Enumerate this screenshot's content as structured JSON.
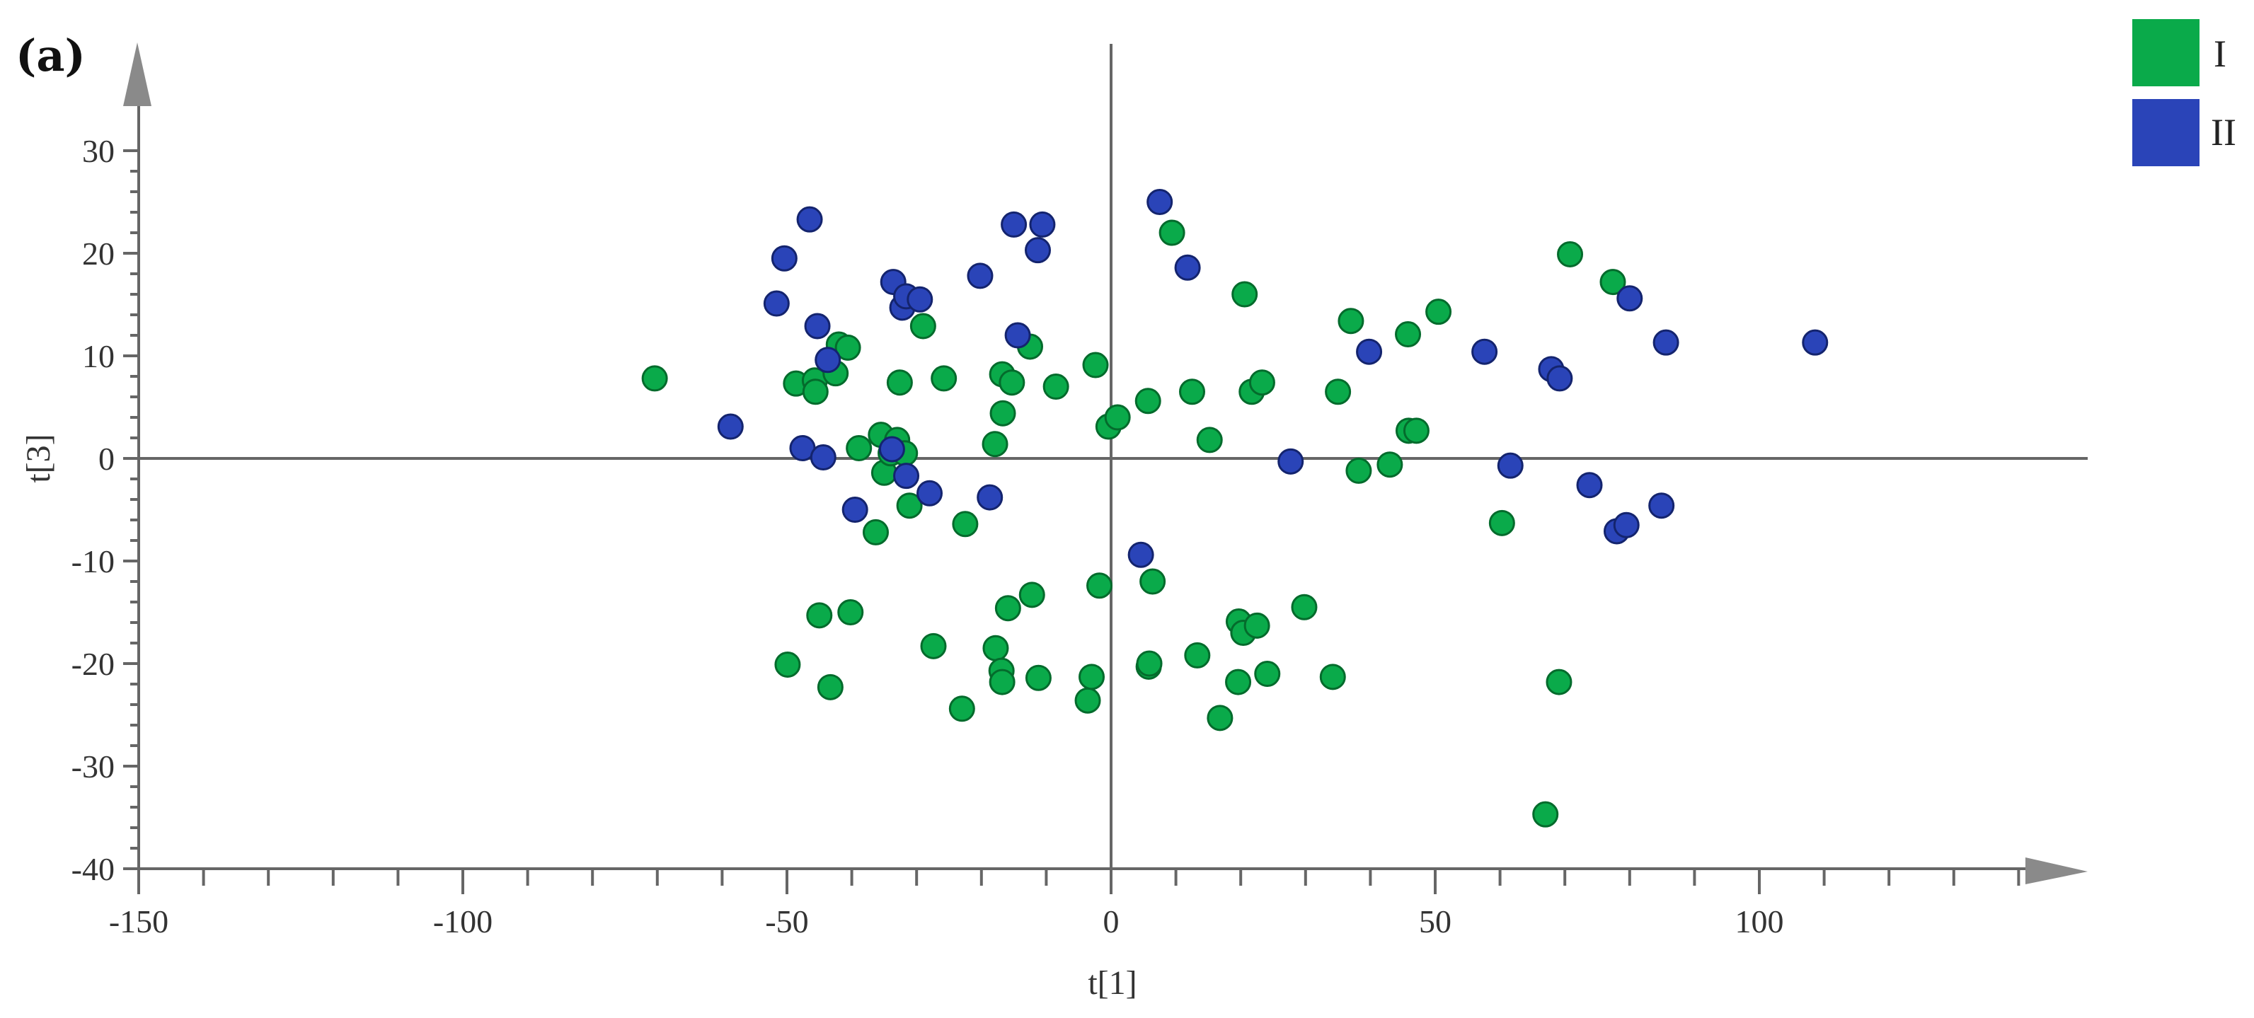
{
  "panel_label": "(a)",
  "colors": {
    "I": "#0aaa4a",
    "II": "#2a44b8",
    "axis": "#666666"
  },
  "chart_data": {
    "type": "scatter",
    "xlabel": "t[1]",
    "ylabel": "t[3]",
    "xlim": [
      -150,
      150
    ],
    "ylim": [
      -40,
      35
    ],
    "xticks": [
      -150,
      -100,
      -50,
      0,
      50,
      100
    ],
    "yticks": [
      -40,
      -30,
      -20,
      -10,
      0,
      10,
      20,
      30
    ],
    "legend_position": "top-right",
    "grid": false,
    "series": [
      {
        "name": "I",
        "color": "#0aaa4a",
        "points": [
          [
            -70.4,
            7.8
          ],
          [
            -48.6,
            7.3
          ],
          [
            -45.7,
            7.6
          ],
          [
            -45.6,
            6.5
          ],
          [
            -42.5,
            8.3
          ],
          [
            -42.0,
            11.1
          ],
          [
            -40.6,
            10.8
          ],
          [
            -38.9,
            1.0
          ],
          [
            -35.5,
            2.3
          ],
          [
            -35.0,
            -1.4
          ],
          [
            -34.0,
            0.5
          ],
          [
            -33.0,
            1.8
          ],
          [
            -32.6,
            7.4
          ],
          [
            -31.8,
            0.5
          ],
          [
            -31.1,
            -4.6
          ],
          [
            -29.0,
            12.9
          ],
          [
            -25.8,
            7.8
          ],
          [
            -36.3,
            -7.2
          ],
          [
            -22.5,
            -6.4
          ],
          [
            -16.8,
            8.2
          ],
          [
            -16.7,
            4.4
          ],
          [
            -17.9,
            1.4
          ],
          [
            -15.3,
            7.4
          ],
          [
            -12.5,
            10.9
          ],
          [
            -8.5,
            7.0
          ],
          [
            -2.4,
            9.1
          ],
          [
            -0.4,
            3.1
          ],
          [
            1.0,
            4.0
          ],
          [
            5.7,
            5.6
          ],
          [
            12.5,
            6.5
          ],
          [
            15.2,
            1.8
          ],
          [
            20.6,
            16.0
          ],
          [
            21.7,
            6.5
          ],
          [
            23.3,
            7.4
          ],
          [
            9.4,
            22.0
          ],
          [
            35.0,
            6.5
          ],
          [
            37.0,
            13.4
          ],
          [
            38.2,
            -1.2
          ],
          [
            43.0,
            -0.6
          ],
          [
            45.8,
            12.1
          ],
          [
            45.9,
            2.7
          ],
          [
            47.1,
            2.7
          ],
          [
            50.5,
            14.3
          ],
          [
            60.3,
            -6.3
          ],
          [
            70.8,
            19.9
          ],
          [
            77.4,
            17.2
          ],
          [
            -49.9,
            -20.1
          ],
          [
            -45.0,
            -15.3
          ],
          [
            -43.3,
            -22.3
          ],
          [
            -40.2,
            -15.0
          ],
          [
            -27.4,
            -18.3
          ],
          [
            -23.0,
            -24.4
          ],
          [
            -17.8,
            -18.5
          ],
          [
            -16.9,
            -20.7
          ],
          [
            -16.8,
            -21.8
          ],
          [
            -15.9,
            -14.6
          ],
          [
            -12.2,
            -13.3
          ],
          [
            -11.2,
            -21.4
          ],
          [
            -3.6,
            -23.6
          ],
          [
            -3.0,
            -21.3
          ],
          [
            -1.8,
            -12.4
          ],
          [
            5.8,
            -20.3
          ],
          [
            5.9,
            -20.0
          ],
          [
            6.4,
            -12.0
          ],
          [
            13.3,
            -19.2
          ],
          [
            16.8,
            -25.3
          ],
          [
            19.7,
            -15.9
          ],
          [
            19.6,
            -21.8
          ],
          [
            20.4,
            -17.0
          ],
          [
            22.5,
            -16.3
          ],
          [
            24.1,
            -21.0
          ],
          [
            29.8,
            -14.5
          ],
          [
            34.2,
            -21.3
          ],
          [
            67.0,
            -34.7
          ],
          [
            69.1,
            -21.8
          ]
        ]
      },
      {
        "name": "II",
        "color": "#2a44b8",
        "points": [
          [
            -46.5,
            23.3
          ],
          [
            -50.4,
            19.5
          ],
          [
            -51.6,
            15.1
          ],
          [
            -45.3,
            12.9
          ],
          [
            -43.7,
            9.6
          ],
          [
            -58.7,
            3.1
          ],
          [
            -47.6,
            1.0
          ],
          [
            -44.4,
            0.1
          ],
          [
            -39.5,
            -5.0
          ],
          [
            -33.8,
            0.9
          ],
          [
            -33.6,
            17.2
          ],
          [
            -32.2,
            14.7
          ],
          [
            -31.6,
            15.8
          ],
          [
            -29.5,
            15.5
          ],
          [
            -31.6,
            -1.7
          ],
          [
            -28.0,
            -3.4
          ],
          [
            -20.2,
            17.8
          ],
          [
            -18.7,
            -3.8
          ],
          [
            -15.0,
            22.8
          ],
          [
            -10.6,
            22.8
          ],
          [
            -11.3,
            20.3
          ],
          [
            -14.4,
            12.0
          ],
          [
            7.5,
            25.0
          ],
          [
            11.8,
            18.6
          ],
          [
            4.6,
            -9.4
          ],
          [
            27.7,
            -0.3
          ],
          [
            39.8,
            10.4
          ],
          [
            57.6,
            10.4
          ],
          [
            61.6,
            -0.7
          ],
          [
            67.9,
            8.7
          ],
          [
            69.2,
            7.8
          ],
          [
            73.8,
            -2.6
          ],
          [
            78.0,
            -7.1
          ],
          [
            79.5,
            -6.5
          ],
          [
            80.0,
            15.6
          ],
          [
            84.9,
            -4.6
          ],
          [
            85.6,
            11.3
          ],
          [
            108.6,
            11.3
          ]
        ]
      }
    ]
  }
}
